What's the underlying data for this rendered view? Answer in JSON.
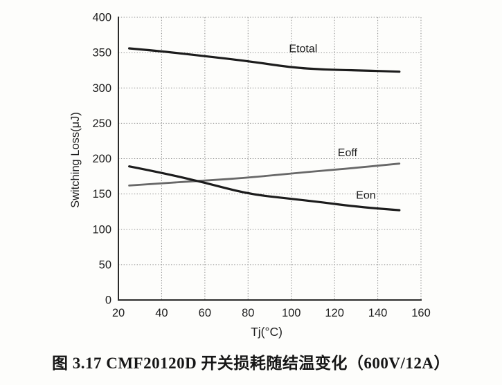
{
  "figure": {
    "caption": "图 3.17 CMF20120D 开关损耗随结温变化（600V/12A）"
  },
  "chart_data": {
    "type": "line",
    "title": "",
    "xlabel": "Tj(°C)",
    "ylabel": "Switching Loss(μJ)",
    "xlim": [
      20,
      160
    ],
    "ylim": [
      0,
      400
    ],
    "xticks": [
      20,
      40,
      60,
      80,
      100,
      120,
      140,
      160
    ],
    "yticks": [
      0,
      50,
      100,
      150,
      200,
      250,
      300,
      350,
      400
    ],
    "grid": true,
    "legend_position": "inline-labels",
    "x": [
      25,
      40,
      60,
      80,
      100,
      115,
      130,
      150
    ],
    "series": [
      {
        "name": "Etotal",
        "values": [
          356,
          352,
          345,
          338,
          329,
          326,
          325,
          323
        ],
        "color": "#1c1c1c",
        "stroke_width": 3.2,
        "label": {
          "text": "Etotal",
          "x": 105.5,
          "y": 356
        }
      },
      {
        "name": "Eoff",
        "values": [
          162,
          165,
          169,
          173,
          179,
          183,
          187,
          193
        ],
        "color": "#686868",
        "stroke_width": 2.8,
        "label": {
          "text": "Eoff",
          "x": 126,
          "y": 209
        }
      },
      {
        "name": "Eon",
        "values": [
          189,
          180,
          166,
          150,
          143,
          138,
          132,
          127
        ],
        "color": "#1c1c1c",
        "stroke_width": 3.2,
        "label": {
          "text": "Eon",
          "x": 134.5,
          "y": 148.5
        }
      }
    ]
  },
  "colors": {
    "axis": "#2a2a2a",
    "grid": "#909090",
    "text": "#1d1d1d",
    "background": "#fdfdfb"
  }
}
